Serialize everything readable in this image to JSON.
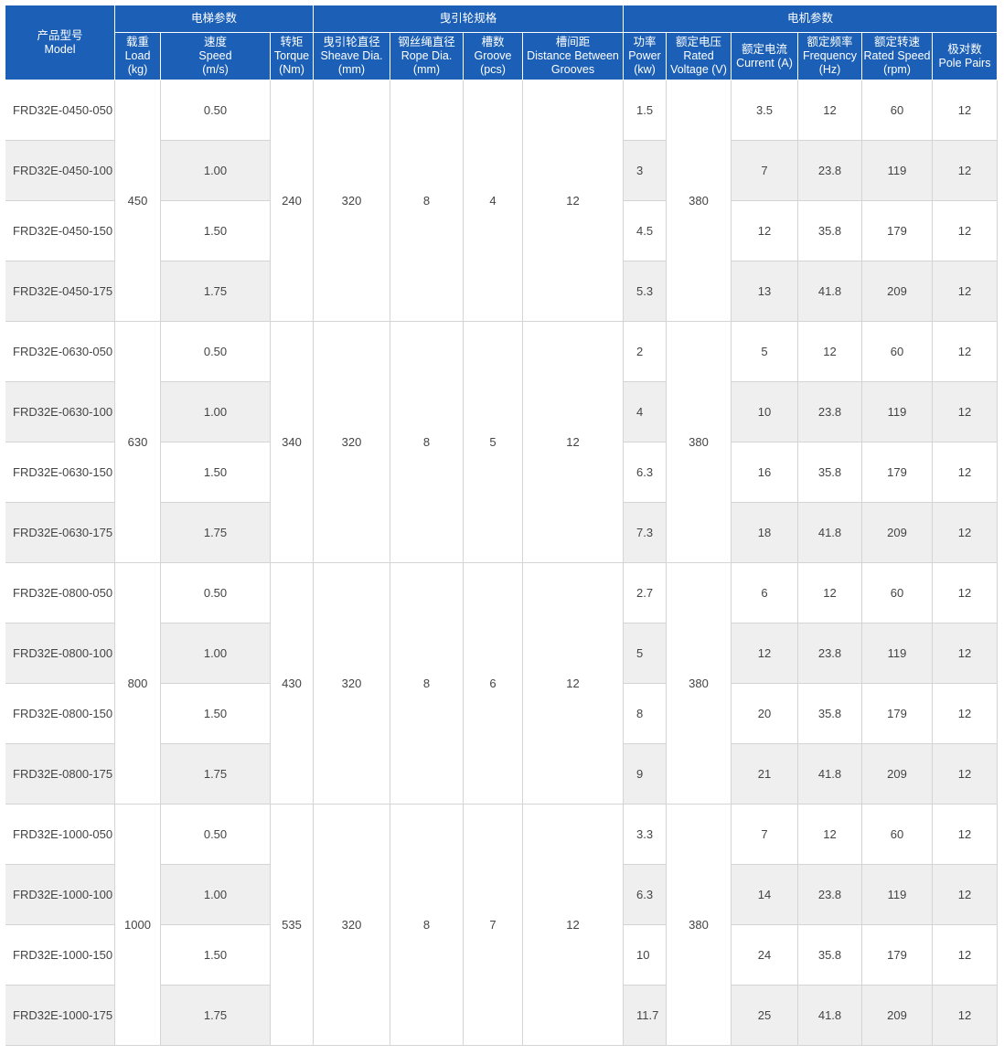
{
  "header": {
    "model": [
      "产品型号",
      "Model"
    ],
    "groups": [
      "电梯参数",
      "曳引轮规格",
      "电机参数"
    ],
    "columns": [
      [
        "载重",
        "Load",
        "(kg)"
      ],
      [
        "速度",
        "Speed",
        "(m/s)"
      ],
      [
        "转矩",
        "Torque",
        "(Nm)"
      ],
      [
        "曳引轮直径",
        "Sheave Dia.",
        "(mm)"
      ],
      [
        "钢丝绳直径",
        "Rope Dia.",
        "(mm)"
      ],
      [
        "槽数",
        "Groove",
        "(pcs)"
      ],
      [
        "槽间距",
        "Distance Between",
        "Grooves"
      ],
      [
        "功率",
        "Power",
        "(kw)"
      ],
      [
        "额定电压",
        "Rated",
        "Voltage (V)"
      ],
      [
        "额定电流",
        "Current (A)"
      ],
      [
        "额定频率",
        "Frequency",
        "(Hz)"
      ],
      [
        "额定转速",
        "Rated Speed",
        "(rpm)"
      ],
      [
        "极对数",
        "Pole Pairs"
      ]
    ]
  },
  "groups": [
    {
      "load": "450",
      "torque": "240",
      "sheave": "320",
      "rope": "8",
      "groove": "4",
      "distance": "12",
      "voltage": "380",
      "rows": [
        {
          "model": "FRD32E-0450-050",
          "speed": "0.50",
          "power": "1.5",
          "current": "3.5",
          "frequency": "12",
          "rated_speed": "60",
          "pole_pairs": "12"
        },
        {
          "model": "FRD32E-0450-100",
          "speed": "1.00",
          "power": "3",
          "current": "7",
          "frequency": "23.8",
          "rated_speed": "119",
          "pole_pairs": "12"
        },
        {
          "model": "FRD32E-0450-150",
          "speed": "1.50",
          "power": "4.5",
          "current": "12",
          "frequency": "35.8",
          "rated_speed": "179",
          "pole_pairs": "12"
        },
        {
          "model": "FRD32E-0450-175",
          "speed": "1.75",
          "power": "5.3",
          "current": "13",
          "frequency": "41.8",
          "rated_speed": "209",
          "pole_pairs": "12"
        }
      ]
    },
    {
      "load": "630",
      "torque": "340",
      "sheave": "320",
      "rope": "8",
      "groove": "5",
      "distance": "12",
      "voltage": "380",
      "rows": [
        {
          "model": "FRD32E-0630-050",
          "speed": "0.50",
          "power": "2",
          "current": "5",
          "frequency": "12",
          "rated_speed": "60",
          "pole_pairs": "12"
        },
        {
          "model": "FRD32E-0630-100",
          "speed": "1.00",
          "power": "4",
          "current": "10",
          "frequency": "23.8",
          "rated_speed": "119",
          "pole_pairs": "12"
        },
        {
          "model": "FRD32E-0630-150",
          "speed": "1.50",
          "power": "6.3",
          "current": "16",
          "frequency": "35.8",
          "rated_speed": "179",
          "pole_pairs": "12"
        },
        {
          "model": "FRD32E-0630-175",
          "speed": "1.75",
          "power": "7.3",
          "current": "18",
          "frequency": "41.8",
          "rated_speed": "209",
          "pole_pairs": "12"
        }
      ]
    },
    {
      "load": "800",
      "torque": "430",
      "sheave": "320",
      "rope": "8",
      "groove": "6",
      "distance": "12",
      "voltage": "380",
      "rows": [
        {
          "model": "FRD32E-0800-050",
          "speed": "0.50",
          "power": "2.7",
          "current": "6",
          "frequency": "12",
          "rated_speed": "60",
          "pole_pairs": "12"
        },
        {
          "model": "FRD32E-0800-100",
          "speed": "1.00",
          "power": "5",
          "current": "12",
          "frequency": "23.8",
          "rated_speed": "119",
          "pole_pairs": "12"
        },
        {
          "model": "FRD32E-0800-150",
          "speed": "1.50",
          "power": "8",
          "current": "20",
          "frequency": "35.8",
          "rated_speed": "179",
          "pole_pairs": "12"
        },
        {
          "model": "FRD32E-0800-175",
          "speed": "1.75",
          "power": "9",
          "current": "21",
          "frequency": "41.8",
          "rated_speed": "209",
          "pole_pairs": "12"
        }
      ]
    },
    {
      "load": "1000",
      "torque": "535",
      "sheave": "320",
      "rope": "8",
      "groove": "7",
      "distance": "12",
      "voltage": "380",
      "rows": [
        {
          "model": "FRD32E-1000-050",
          "speed": "0.50",
          "power": "3.3",
          "current": "7",
          "frequency": "12",
          "rated_speed": "60",
          "pole_pairs": "12"
        },
        {
          "model": "FRD32E-1000-100",
          "speed": "1.00",
          "power": "6.3",
          "current": "14",
          "frequency": "23.8",
          "rated_speed": "119",
          "pole_pairs": "12"
        },
        {
          "model": "FRD32E-1000-150",
          "speed": "1.50",
          "power": "10",
          "current": "24",
          "frequency": "35.8",
          "rated_speed": "179",
          "pole_pairs": "12"
        },
        {
          "model": "FRD32E-1000-175",
          "speed": "1.75",
          "power": "11.7",
          "current": "25",
          "frequency": "41.8",
          "rated_speed": "209",
          "pole_pairs": "12"
        }
      ]
    }
  ]
}
